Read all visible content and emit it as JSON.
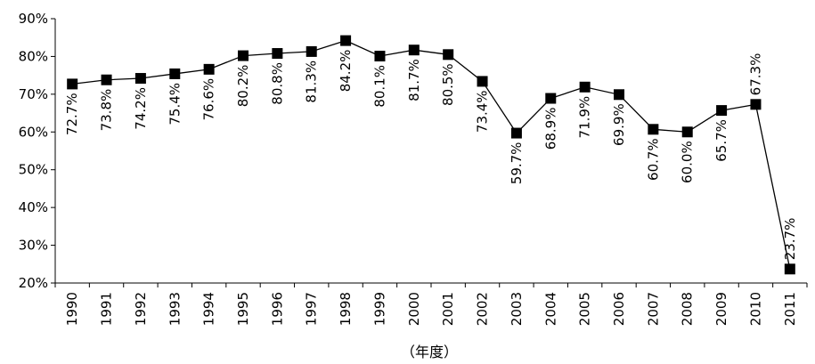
{
  "chart_data": {
    "type": "line",
    "xlabel": "（年度）",
    "ylabel": "",
    "ylim": [
      20,
      90
    ],
    "yticks": [
      20,
      30,
      40,
      50,
      60,
      70,
      80,
      90
    ],
    "y_tick_suffix": "%",
    "grid": false,
    "legend": "none",
    "categories": [
      "1990",
      "1991",
      "1992",
      "1993",
      "1994",
      "1995",
      "1996",
      "1997",
      "1998",
      "1999",
      "2000",
      "2001",
      "2002",
      "2003",
      "2004",
      "2005",
      "2006",
      "2007",
      "2008",
      "2009",
      "2010",
      "2011"
    ],
    "series": [
      {
        "values": [
          72.7,
          73.8,
          74.2,
          75.4,
          76.6,
          80.2,
          80.8,
          81.3,
          84.2,
          80.1,
          81.7,
          80.5,
          73.4,
          59.7,
          68.9,
          71.9,
          69.9,
          60.7,
          60.0,
          65.7,
          67.3,
          23.7
        ],
        "labels": [
          "72.7%",
          "73.8%",
          "74.2%",
          "75.4%",
          "76.6%",
          "80.2%",
          "80.8%",
          "81.3%",
          "84.2%",
          "80.1%",
          "81.7%",
          "80.5%",
          "73.4%",
          "59.7%",
          "68.9%",
          "71.9%",
          "69.9%",
          "60.7%",
          "60.0%",
          "65.7%",
          "67.3%",
          "23.7%"
        ],
        "label_position": [
          "below",
          "below",
          "below",
          "below",
          "below",
          "below",
          "below",
          "below",
          "below",
          "below",
          "below",
          "below",
          "below",
          "below",
          "below",
          "below",
          "below",
          "below",
          "below",
          "below",
          "above",
          "above"
        ],
        "color": "#000000",
        "marker": "square"
      }
    ]
  }
}
